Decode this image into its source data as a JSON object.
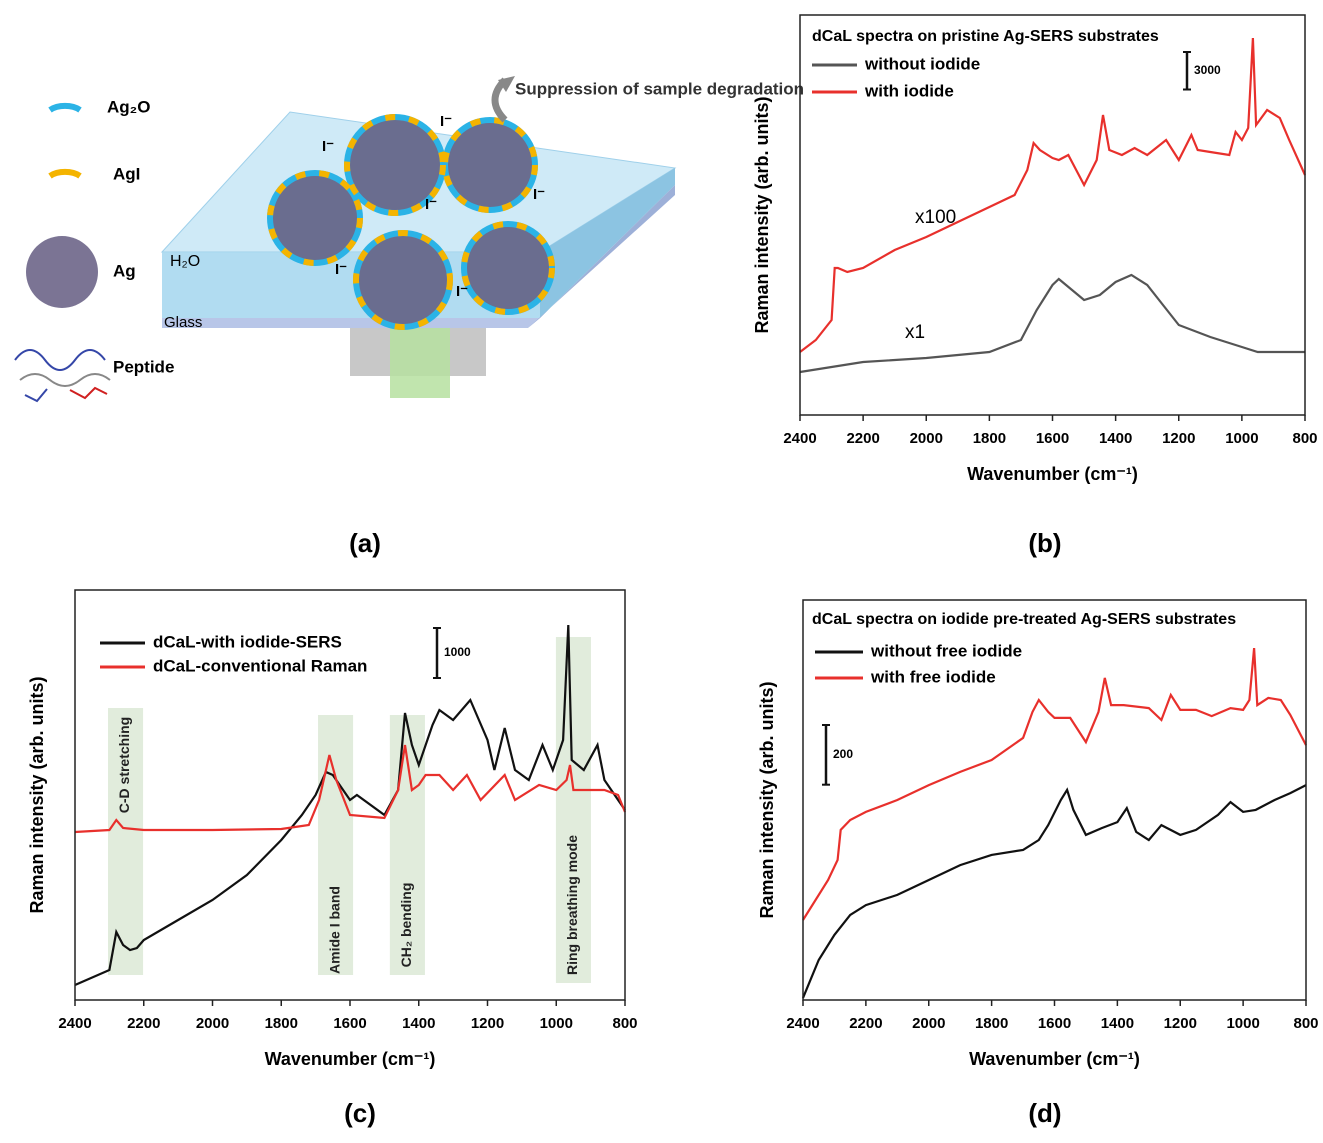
{
  "diagram": {
    "legend": [
      "Ag₂O",
      "AgI",
      "Ag",
      "Peptide"
    ],
    "arrow_text": "Suppression of sample degradation",
    "water": "H₂O",
    "glass": "Glass",
    "ions": [
      "I⁻",
      "I⁻",
      "I⁻",
      "I⁻",
      "I⁻",
      "I⁻"
    ],
    "panel_label": "(a)"
  },
  "chart_data": [
    {
      "type": "line",
      "panel_label": "(b)",
      "legend_title": "dCaL spectra on pristine Ag-SERS substrates",
      "xlabel": "Wavenumber (cm⁻¹)",
      "ylabel": "Raman intensity (arb. units)",
      "xlim": [
        2400,
        800
      ],
      "xticks": [
        2400,
        2200,
        2000,
        1800,
        1600,
        1400,
        1200,
        1000,
        800
      ],
      "ylim": [
        0,
        32000
      ],
      "scale_bar": 3000,
      "annotations": [
        "x100",
        "x1"
      ],
      "series": [
        {
          "name": "without iodide",
          "color": "#555555",
          "x": [
            2400,
            2200,
            2000,
            1800,
            1700,
            1650,
            1600,
            1580,
            1500,
            1450,
            1400,
            1350,
            1300,
            1250,
            1200,
            1100,
            1000,
            950,
            900,
            800
          ],
          "values": [
            3440,
            4240,
            4560,
            5040,
            6000,
            8400,
            10400,
            10880,
            9200,
            9600,
            10640,
            11200,
            10400,
            8800,
            7200,
            6240,
            5440,
            5040,
            5040,
            5040
          ]
        },
        {
          "name": "with iodide",
          "color": "#e8302c",
          "x": [
            2400,
            2350,
            2300,
            2290,
            2280,
            2250,
            2200,
            2100,
            2000,
            1900,
            1800,
            1720,
            1680,
            1660,
            1640,
            1600,
            1580,
            1550,
            1500,
            1460,
            1440,
            1420,
            1380,
            1340,
            1300,
            1240,
            1200,
            1160,
            1140,
            1100,
            1040,
            1020,
            1000,
            980,
            965,
            955,
            920,
            880,
            850,
            800
          ],
          "values": [
            5040,
            6000,
            7600,
            11760,
            11760,
            11440,
            11760,
            13200,
            14240,
            15440,
            16640,
            17600,
            19600,
            21760,
            21200,
            20560,
            20400,
            20800,
            18400,
            20400,
            24000,
            21200,
            20800,
            21360,
            20800,
            22000,
            20400,
            22400,
            21200,
            21040,
            20800,
            22640,
            22000,
            22960,
            30160,
            23200,
            24400,
            23760,
            22000,
            19200
          ]
        }
      ]
    },
    {
      "type": "line",
      "panel_label": "(c)",
      "xlabel": "Wavenumber (cm⁻¹)",
      "ylabel": "Raman intensity (arb. units)",
      "xlim": [
        2400,
        800
      ],
      "xticks": [
        2400,
        2200,
        2000,
        1800,
        1600,
        1400,
        1200,
        1000,
        800
      ],
      "ylim": [
        0,
        8200
      ],
      "scale_bar": 1000,
      "bands": [
        {
          "label": "C-D stretching",
          "range": [
            2304,
            2202
          ]
        },
        {
          "label": "Amide I band",
          "range": [
            1693,
            1591
          ]
        },
        {
          "label": "CH₂ bending",
          "range": [
            1484,
            1382
          ]
        },
        {
          "label": "Ring breathing mode",
          "range": [
            1001,
            899
          ]
        }
      ],
      "series": [
        {
          "name": "dCaL-with iodide-SERS",
          "color": "#111111",
          "x": [
            2400,
            2300,
            2280,
            2260,
            2240,
            2220,
            2200,
            2100,
            2000,
            1900,
            1800,
            1740,
            1700,
            1670,
            1650,
            1620,
            1600,
            1580,
            1500,
            1460,
            1440,
            1420,
            1400,
            1360,
            1340,
            1300,
            1250,
            1200,
            1180,
            1150,
            1120,
            1080,
            1040,
            1010,
            980,
            965,
            955,
            920,
            880,
            860,
            820,
            800
          ],
          "values": [
            300,
            600,
            1360,
            1100,
            1000,
            1040,
            1200,
            1600,
            2000,
            2500,
            3200,
            3700,
            4100,
            4560,
            4500,
            4200,
            4000,
            4100,
            3700,
            4200,
            5740,
            5100,
            4700,
            5500,
            5800,
            5600,
            6000,
            5200,
            4600,
            5440,
            4600,
            4400,
            5100,
            4600,
            5200,
            7500,
            4800,
            4600,
            5100,
            4400,
            4000,
            3800
          ]
        },
        {
          "name": "dCaL-conventional Raman",
          "color": "#e8302c",
          "x": [
            2400,
            2300,
            2280,
            2260,
            2200,
            2000,
            1800,
            1720,
            1690,
            1660,
            1640,
            1600,
            1500,
            1460,
            1440,
            1420,
            1400,
            1380,
            1340,
            1300,
            1260,
            1220,
            1150,
            1120,
            1050,
            1000,
            970,
            960,
            950,
            900,
            860,
            820,
            800
          ],
          "values": [
            3360,
            3400,
            3600,
            3440,
            3400,
            3400,
            3420,
            3500,
            4000,
            4900,
            4400,
            3700,
            3640,
            4200,
            5100,
            4200,
            4300,
            4500,
            4500,
            4200,
            4500,
            4000,
            4500,
            4000,
            4300,
            4200,
            4400,
            4700,
            4200,
            4200,
            4200,
            4100,
            3760
          ]
        }
      ]
    },
    {
      "type": "line",
      "panel_label": "(d)",
      "legend_title": "dCaL spectra on iodide pre-treated Ag-SERS substrates",
      "xlabel": "Wavenumber (cm⁻¹)",
      "ylabel": "Raman intensity (arb. units)",
      "xlim": [
        2400,
        800
      ],
      "xticks": [
        2400,
        2200,
        2000,
        1800,
        1600,
        1400,
        1200,
        1000,
        800
      ],
      "ylim": [
        0,
        1340
      ],
      "scale_bar": 200,
      "series": [
        {
          "name": "without free iodide",
          "color": "#111111",
          "x": [
            2400,
            2350,
            2300,
            2250,
            2200,
            2100,
            2000,
            1900,
            1800,
            1700,
            1650,
            1620,
            1580,
            1560,
            1540,
            1500,
            1450,
            1400,
            1370,
            1340,
            1300,
            1260,
            1200,
            1150,
            1080,
            1040,
            1000,
            960,
            900,
            850,
            800
          ],
          "values": [
            7,
            134,
            218,
            285,
            318,
            352,
            402,
            452,
            486,
            503,
            536,
            586,
            670,
            704,
            637,
            553,
            576,
            596,
            643,
            563,
            536,
            586,
            553,
            570,
            620,
            663,
            630,
            637,
            670,
            693,
            720
          ]
        },
        {
          "name": "with free iodide",
          "color": "#e8302c",
          "x": [
            2400,
            2320,
            2290,
            2280,
            2250,
            2200,
            2100,
            2000,
            1900,
            1800,
            1700,
            1670,
            1650,
            1620,
            1600,
            1550,
            1500,
            1460,
            1440,
            1420,
            1380,
            1300,
            1260,
            1230,
            1200,
            1150,
            1100,
            1040,
            1000,
            980,
            965,
            955,
            920,
            880,
            850,
            800
          ],
          "values": [
            268,
            402,
            469,
            570,
            603,
            630,
            670,
            720,
            764,
            804,
            878,
            965,
            1005,
            965,
            945,
            945,
            864,
            965,
            1079,
            988,
            988,
            978,
            938,
            1022,
            972,
            972,
            951,
            978,
            972,
            1005,
            1179,
            988,
            1012,
            1005,
            955,
            854
          ]
        }
      ]
    }
  ]
}
